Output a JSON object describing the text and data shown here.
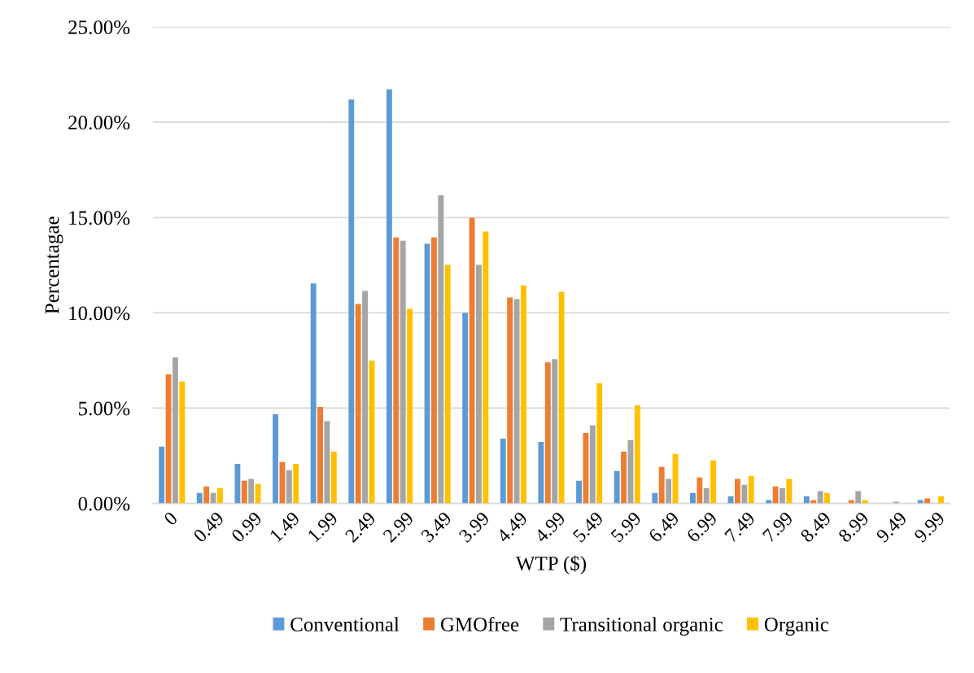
{
  "chart_data": {
    "type": "bar",
    "xlabel": "WTP ($)",
    "ylabel": "Percentagae",
    "categories": [
      "0",
      "0.49",
      "0.99",
      "1.49",
      "1.99",
      "2.49",
      "2.99",
      "3.49",
      "3.99",
      "4.49",
      "4.99",
      "5.49",
      "5.99",
      "6.49",
      "6.99",
      "7.49",
      "7.99",
      "8.49",
      "8.99",
      "9.49",
      "9.99"
    ],
    "series": [
      {
        "name": "Conventional",
        "color": "#5b9bd5",
        "values": [
          2.98,
          0.55,
          2.08,
          4.68,
          11.54,
          21.19,
          21.73,
          13.62,
          10.0,
          3.4,
          3.23,
          1.19,
          1.7,
          0.55,
          0.55,
          0.38,
          0.17,
          0.38,
          0,
          0,
          0.17
        ]
      },
      {
        "name": "GMOfree",
        "color": "#ed7d31",
        "values": [
          6.77,
          0.89,
          1.19,
          2.17,
          5.06,
          10.47,
          13.96,
          13.96,
          14.98,
          10.81,
          7.4,
          3.7,
          2.72,
          1.91,
          1.36,
          1.28,
          0.89,
          0.17,
          0.17,
          0,
          0.26
        ]
      },
      {
        "name": "Transitional organic",
        "color": "#a5a5a5",
        "values": [
          7.66,
          0.55,
          1.28,
          1.74,
          4.32,
          11.15,
          13.79,
          16.17,
          12.51,
          10.72,
          7.57,
          4.09,
          3.32,
          1.28,
          0.81,
          0.98,
          0.81,
          0.64,
          0.64,
          0.09,
          0
        ]
      },
      {
        "name": "Organic",
        "color": "#ffc000",
        "values": [
          6.4,
          0.81,
          1.02,
          2.08,
          2.72,
          7.49,
          10.21,
          12.51,
          14.26,
          11.45,
          11.11,
          6.3,
          5.15,
          2.6,
          2.26,
          1.45,
          1.28,
          0.55,
          0.17,
          0,
          0.38
        ]
      }
    ],
    "ylim": [
      0,
      25
    ],
    "yticks": [
      {
        "value": 0,
        "label": "0.00%"
      },
      {
        "value": 5,
        "label": "5.00%"
      },
      {
        "value": 10,
        "label": "10.00%"
      },
      {
        "value": 15,
        "label": "15.00%"
      },
      {
        "value": 20,
        "label": "20.00%"
      },
      {
        "value": 25,
        "label": "25.00%"
      }
    ],
    "grid": "y",
    "legend": "bottom"
  }
}
